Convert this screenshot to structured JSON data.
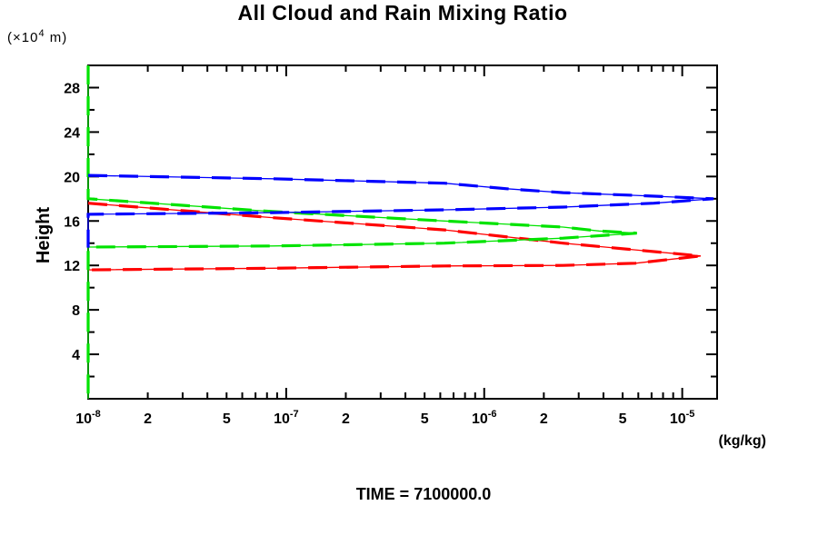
{
  "y_units_display": {
    "prefix": "(×10",
    "exp": "4",
    "suffix": " m)"
  },
  "chart_data": {
    "type": "line",
    "title": "All Cloud and Rain Mixing Ratio",
    "xlabel": "(kg/kg)",
    "ylabel": "Height",
    "y_units_note": "(×10^4 m)",
    "annotation": "TIME = 7100000.0",
    "xscale": "log",
    "xlim": [
      1e-08,
      1.5e-05
    ],
    "ylim": [
      0,
      30
    ],
    "grid": false,
    "legend": "none",
    "frame_color": "#000000",
    "y_major_ticks": [
      4,
      8,
      12,
      16,
      20,
      24,
      28
    ],
    "y_minor_ticks": [
      2,
      6,
      10,
      14,
      18,
      22,
      26
    ],
    "x_decade_exponents": [
      -8,
      -7,
      -6,
      -5
    ],
    "x_labeled_mantissas": [
      2,
      5
    ],
    "series": [
      {
        "name": "red-profile",
        "color": "#ff0000",
        "style": "thick-dash-over-thin",
        "points": [
          [
            1e-08,
            17.6
          ],
          [
            8.5e-08,
            16.3
          ],
          [
            6.3e-07,
            15.2
          ],
          [
            2.5e-06,
            14.0
          ],
          [
            5.8e-06,
            13.4
          ],
          [
            1.24e-05,
            12.85
          ],
          [
            5.8e-06,
            12.2
          ],
          [
            2.5e-06,
            12.0
          ],
          [
            6.3e-07,
            11.95
          ],
          [
            8.5e-08,
            11.75
          ],
          [
            1e-08,
            11.6
          ]
        ],
        "peak": {
          "value": 1.24e-05,
          "height": 12.85
        }
      },
      {
        "name": "green-profile",
        "color": "#00e300",
        "style": "thick-dash-over-thin",
        "points": [
          [
            1e-08,
            30
          ],
          [
            1e-08,
            18.0
          ],
          [
            8.5e-08,
            16.85
          ],
          [
            6.3e-07,
            16.0
          ],
          [
            2.5e-06,
            15.45
          ],
          [
            3.8e-06,
            15.1
          ],
          [
            5.9e-06,
            14.9
          ],
          [
            2.5e-06,
            14.45
          ],
          [
            6.3e-07,
            14.0
          ],
          [
            8.5e-08,
            13.75
          ],
          [
            1e-08,
            13.65
          ],
          [
            1e-08,
            0
          ]
        ],
        "peak": {
          "value": 5.9e-06,
          "height": 14.9
        }
      },
      {
        "name": "blue-profile",
        "color": "#0000ff",
        "style": "thick-dash-over-thin",
        "points": [
          [
            1e-08,
            20.1
          ],
          [
            8.5e-08,
            19.8
          ],
          [
            6.3e-07,
            19.4
          ],
          [
            1.3e-06,
            18.9
          ],
          [
            2.5e-06,
            18.55
          ],
          [
            5.8e-06,
            18.3
          ],
          [
            1.44e-05,
            18.0
          ],
          [
            7.2e-06,
            17.6
          ],
          [
            2.5e-06,
            17.25
          ],
          [
            6.3e-07,
            17.0
          ],
          [
            8.5e-08,
            16.75
          ],
          [
            1e-08,
            16.6
          ],
          [
            1e-08,
            13.6
          ]
        ],
        "peak": {
          "value": 1.44e-05,
          "height": 18.0
        }
      }
    ]
  }
}
